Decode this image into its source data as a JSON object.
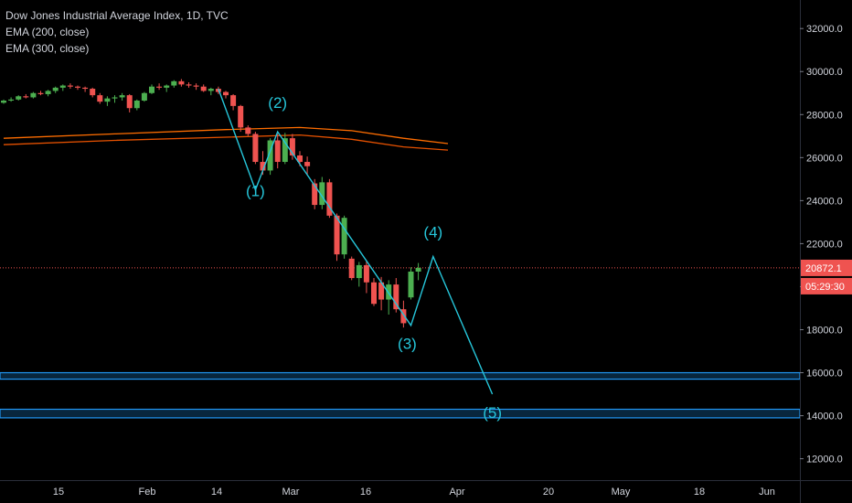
{
  "legend": {
    "title": "Dow Jones Industrial Average Index, 1D, TVC",
    "ema200": "EMA (200, close)",
    "ema300": "EMA (300, close)"
  },
  "colors": {
    "background": "#000000",
    "up": "#26a69a",
    "up_candle": "#4caf50",
    "down": "#ef5350",
    "ema200": "#ff6d00",
    "ema300": "#e65100",
    "wave": "#26c6da",
    "zone": "#2196f3",
    "price_line": "#ef5350",
    "axis_text": "#d1d4dc"
  },
  "chart_data": {
    "type": "candlestick",
    "y_axis": {
      "ticks": [
        "12000.0",
        "14000.0",
        "16000.0",
        "18000.0",
        "20000.0",
        "22000.0",
        "24000.0",
        "26000.0",
        "28000.0",
        "30000.0",
        "32000.0"
      ],
      "ylim": [
        11000,
        33000
      ]
    },
    "x_axis": {
      "ticks": [
        "15",
        "Feb",
        "14",
        "Mar",
        "16",
        "Apr",
        "20",
        "May",
        "18",
        "Jun"
      ]
    },
    "last_price": "20872.1",
    "countdown": "05:29:30",
    "candles": [
      [
        0,
        28550,
        28700,
        28500,
        28650
      ],
      [
        1,
        28650,
        28800,
        28600,
        28700
      ],
      [
        2,
        28700,
        28900,
        28650,
        28850
      ],
      [
        3,
        28850,
        28950,
        28750,
        28800
      ],
      [
        4,
        28800,
        29050,
        28750,
        29000
      ],
      [
        5,
        29000,
        29100,
        28900,
        28950
      ],
      [
        6,
        28950,
        29150,
        28850,
        29100
      ],
      [
        7,
        29100,
        29300,
        29000,
        29250
      ],
      [
        8,
        29250,
        29400,
        29100,
        29350
      ],
      [
        9,
        29350,
        29450,
        29200,
        29300
      ],
      [
        10,
        29300,
        29350,
        29150,
        29250
      ],
      [
        11,
        29250,
        29300,
        29050,
        29200
      ],
      [
        12,
        29200,
        29250,
        28800,
        28900
      ],
      [
        13,
        28900,
        29000,
        28500,
        28600
      ],
      [
        14,
        28600,
        28850,
        28400,
        28750
      ],
      [
        15,
        28750,
        28900,
        28550,
        28800
      ],
      [
        16,
        28800,
        29000,
        28650,
        28900
      ],
      [
        17,
        28900,
        28950,
        28100,
        28300
      ],
      [
        18,
        28300,
        28700,
        28200,
        28650
      ],
      [
        19,
        28650,
        29050,
        28600,
        29000
      ],
      [
        20,
        29000,
        29400,
        28950,
        29300
      ],
      [
        21,
        29300,
        29450,
        29150,
        29250
      ],
      [
        22,
        29250,
        29400,
        29050,
        29350
      ],
      [
        23,
        29350,
        29600,
        29250,
        29550
      ],
      [
        24,
        29550,
        29650,
        29300,
        29400
      ],
      [
        25,
        29400,
        29500,
        29250,
        29350
      ],
      [
        26,
        29350,
        29450,
        29150,
        29300
      ],
      [
        27,
        29300,
        29400,
        29050,
        29100
      ],
      [
        28,
        29100,
        29250,
        28900,
        29200
      ],
      [
        29,
        29200,
        29300,
        28950,
        29050
      ],
      [
        30,
        29050,
        29100,
        28750,
        28900
      ],
      [
        31,
        28900,
        28950,
        28200,
        28400
      ],
      [
        32,
        28400,
        28450,
        27200,
        27400
      ],
      [
        33,
        27400,
        27500,
        27000,
        27100
      ],
      [
        34,
        27100,
        27200,
        25700,
        25800
      ],
      [
        35,
        25800,
        26300,
        25200,
        25400
      ],
      [
        36,
        25400,
        26900,
        25200,
        26800
      ],
      [
        37,
        26800,
        27100,
        25500,
        25800
      ],
      [
        38,
        25800,
        27150,
        25700,
        26900
      ],
      [
        39,
        26900,
        27100,
        25900,
        26100
      ],
      [
        40,
        26100,
        26300,
        25600,
        25800
      ],
      [
        41,
        25800,
        26050,
        25200,
        25600
      ],
      [
        42,
        24800,
        25000,
        23600,
        23800
      ],
      [
        43,
        23800,
        25100,
        23600,
        24850
      ],
      [
        44,
        24850,
        25000,
        23200,
        23300
      ],
      [
        45,
        23300,
        23400,
        21200,
        21500
      ],
      [
        46,
        21500,
        23300,
        21300,
        23200
      ],
      [
        47,
        21300,
        21400,
        20300,
        20400
      ],
      [
        48,
        20400,
        21150,
        20000,
        21000
      ],
      [
        49,
        21000,
        21200,
        19700,
        20200
      ],
      [
        50,
        20200,
        20400,
        19100,
        19200
      ],
      [
        51,
        20200,
        20450,
        18900,
        19400
      ],
      [
        52,
        19400,
        20300,
        18700,
        20100
      ],
      [
        53,
        20100,
        20400,
        18800,
        18950
      ],
      [
        54,
        18950,
        19350,
        18100,
        18300
      ],
      [
        55,
        19500,
        20900,
        19400,
        20700
      ],
      [
        56,
        20700,
        21100,
        20300,
        20872
      ]
    ],
    "ema200": [
      [
        0,
        26900
      ],
      [
        15,
        27100
      ],
      [
        30,
        27300
      ],
      [
        40,
        27400
      ],
      [
        47,
        27250
      ],
      [
        54,
        26900
      ],
      [
        60,
        26650
      ]
    ],
    "ema300": [
      [
        0,
        26600
      ],
      [
        15,
        26800
      ],
      [
        30,
        26950
      ],
      [
        40,
        27050
      ],
      [
        47,
        26850
      ],
      [
        54,
        26500
      ],
      [
        60,
        26350
      ]
    ],
    "wave_path": [
      [
        29,
        29200
      ],
      [
        34,
        24500
      ],
      [
        37,
        27200
      ],
      [
        55,
        18200
      ],
      [
        58,
        21400
      ],
      [
        66,
        15000
      ]
    ],
    "wave_labels": [
      {
        "label": "(1)",
        "x": 34,
        "y": 24200
      },
      {
        "label": "(2)",
        "x": 37,
        "y": 28300
      },
      {
        "label": "(3)",
        "x": 54.5,
        "y": 17100
      },
      {
        "label": "(4)",
        "x": 58,
        "y": 22300
      },
      {
        "label": "(5)",
        "x": 66,
        "y": 13900
      }
    ],
    "support_zones": [
      [
        15700,
        16000
      ],
      [
        13900,
        14300
      ]
    ],
    "grid": false,
    "legend_position": "top-left"
  }
}
